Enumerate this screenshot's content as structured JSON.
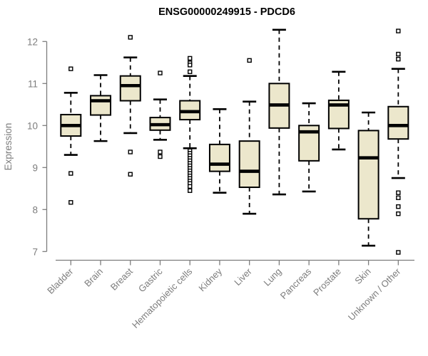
{
  "title": "ENSG00000249915 - PDCD6",
  "colors": {
    "box_fill": "#ECE7CC",
    "box_stroke": "#000000",
    "axis": "#7d7d7d",
    "tick_label": "#7d7d7d",
    "title": "#000000"
  },
  "chart_data": {
    "type": "boxplot",
    "title": "ENSG00000249915 - PDCD6",
    "xlabel": "",
    "ylabel": "Expression",
    "ylim": [
      6.8,
      12.4
    ],
    "yticks": [
      7,
      8,
      9,
      10,
      11,
      12
    ],
    "grid": false,
    "legend": "none",
    "categories": [
      "Bladder",
      "Brain",
      "Breast",
      "Gastric",
      "Hematopoietic cells",
      "Kidney",
      "Liver",
      "Lung",
      "Pancreas",
      "Prostate",
      "Skin",
      "Unknown / Other"
    ],
    "series": [
      {
        "category": "Bladder",
        "whisker_low": 9.3,
        "q1": 9.75,
        "median": 10.0,
        "q3": 10.26,
        "whisker_high": 10.78,
        "outliers": [
          11.35,
          8.86,
          8.17
        ]
      },
      {
        "category": "Brain",
        "whisker_low": 9.63,
        "q1": 10.25,
        "median": 10.59,
        "q3": 10.71,
        "whisker_high": 11.2,
        "outliers": []
      },
      {
        "category": "Breast",
        "whisker_low": 9.82,
        "q1": 10.59,
        "median": 10.95,
        "q3": 11.18,
        "whisker_high": 11.62,
        "outliers": [
          12.1,
          9.37,
          8.84
        ]
      },
      {
        "category": "Gastric",
        "whisker_low": 9.66,
        "q1": 9.89,
        "median": 10.02,
        "q3": 10.19,
        "whisker_high": 10.62,
        "outliers": [
          11.25,
          9.37,
          9.26
        ]
      },
      {
        "category": "Hematopoietic cells",
        "whisker_low": 9.46,
        "q1": 10.14,
        "median": 10.33,
        "q3": 10.59,
        "whisker_high": 11.18,
        "outliers": [
          11.6,
          11.49,
          11.44,
          11.28,
          9.4,
          9.34,
          9.28,
          9.22,
          9.16,
          9.1,
          9.04,
          8.98,
          8.92,
          8.86,
          8.8,
          8.74,
          8.68,
          8.62,
          8.55,
          8.45
        ]
      },
      {
        "category": "Kidney",
        "whisker_low": 8.4,
        "q1": 8.91,
        "median": 9.08,
        "q3": 9.55,
        "whisker_high": 10.39,
        "outliers": []
      },
      {
        "category": "Liver",
        "whisker_low": 7.9,
        "q1": 8.53,
        "median": 8.91,
        "q3": 9.63,
        "whisker_high": 10.57,
        "outliers": [
          11.55
        ]
      },
      {
        "category": "Lung",
        "whisker_low": 8.36,
        "q1": 9.94,
        "median": 10.49,
        "q3": 11.0,
        "whisker_high": 12.28,
        "outliers": []
      },
      {
        "category": "Pancreas",
        "whisker_low": 8.43,
        "q1": 9.16,
        "median": 9.85,
        "q3": 10.0,
        "whisker_high": 10.53,
        "outliers": []
      },
      {
        "category": "Prostate",
        "whisker_low": 9.43,
        "q1": 9.93,
        "median": 10.49,
        "q3": 10.6,
        "whisker_high": 11.28,
        "outliers": []
      },
      {
        "category": "Skin",
        "whisker_low": 7.14,
        "q1": 7.78,
        "median": 9.23,
        "q3": 9.88,
        "whisker_high": 10.31,
        "outliers": []
      },
      {
        "category": "Unknown / Other",
        "whisker_low": 8.75,
        "q1": 9.68,
        "median": 10.0,
        "q3": 10.45,
        "whisker_high": 11.35,
        "outliers": [
          12.25,
          11.7,
          11.58,
          8.4,
          8.28,
          8.07,
          7.9,
          6.98
        ]
      }
    ]
  }
}
